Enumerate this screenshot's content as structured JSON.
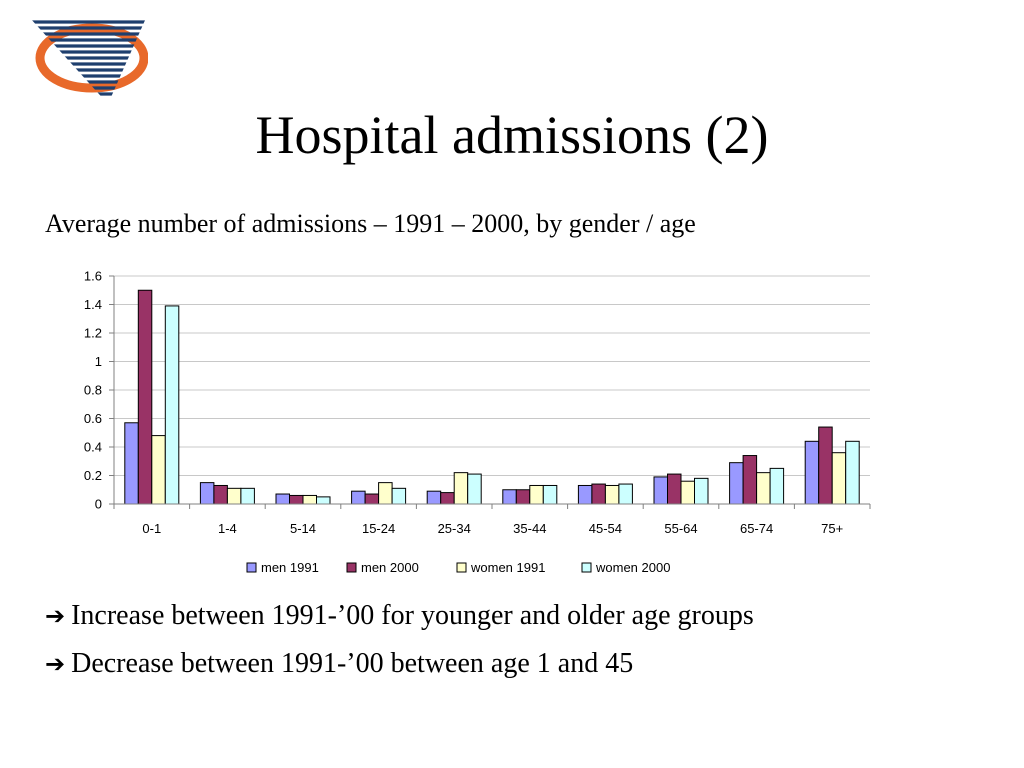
{
  "slide": {
    "title": "Hospital admissions (2)",
    "subtitle": "Average number of admissions – 1991 – 2000, by gender / age",
    "logo_icon": "striped-swoosh-logo",
    "bullets": [
      {
        "arrow": "➔",
        "text": "Increase between 1991-’00 for younger and older age groups"
      },
      {
        "arrow": "➔",
        "text": "Decrease between 1991-’00 between age 1 and 45"
      }
    ]
  },
  "chart_data": {
    "type": "bar",
    "title": "",
    "xlabel": "",
    "ylabel": "",
    "ylim": [
      0,
      1.6
    ],
    "yticks": [
      "0",
      "0.2",
      "0.4",
      "0.6",
      "0.8",
      "1",
      "1.2",
      "1.4",
      "1.6"
    ],
    "grid": true,
    "legend_position": "bottom",
    "categories": [
      "0-1",
      "1-4",
      "5-14",
      "15-24",
      "25-34",
      "35-44",
      "45-54",
      "55-64",
      "65-74",
      "75+"
    ],
    "series": [
      {
        "name": "men 1991",
        "color": "#9999ff",
        "values": [
          0.57,
          0.15,
          0.07,
          0.09,
          0.09,
          0.1,
          0.13,
          0.19,
          0.29,
          0.44
        ]
      },
      {
        "name": "men 2000",
        "color": "#993366",
        "values": [
          1.5,
          0.13,
          0.06,
          0.07,
          0.08,
          0.1,
          0.14,
          0.21,
          0.34,
          0.54
        ]
      },
      {
        "name": "women 1991",
        "color": "#ffffcc",
        "values": [
          0.48,
          0.11,
          0.06,
          0.15,
          0.22,
          0.13,
          0.13,
          0.16,
          0.22,
          0.36
        ]
      },
      {
        "name": "women 2000",
        "color": "#ccffff",
        "values": [
          1.39,
          0.11,
          0.05,
          0.11,
          0.21,
          0.13,
          0.14,
          0.18,
          0.25,
          0.44
        ]
      }
    ]
  }
}
